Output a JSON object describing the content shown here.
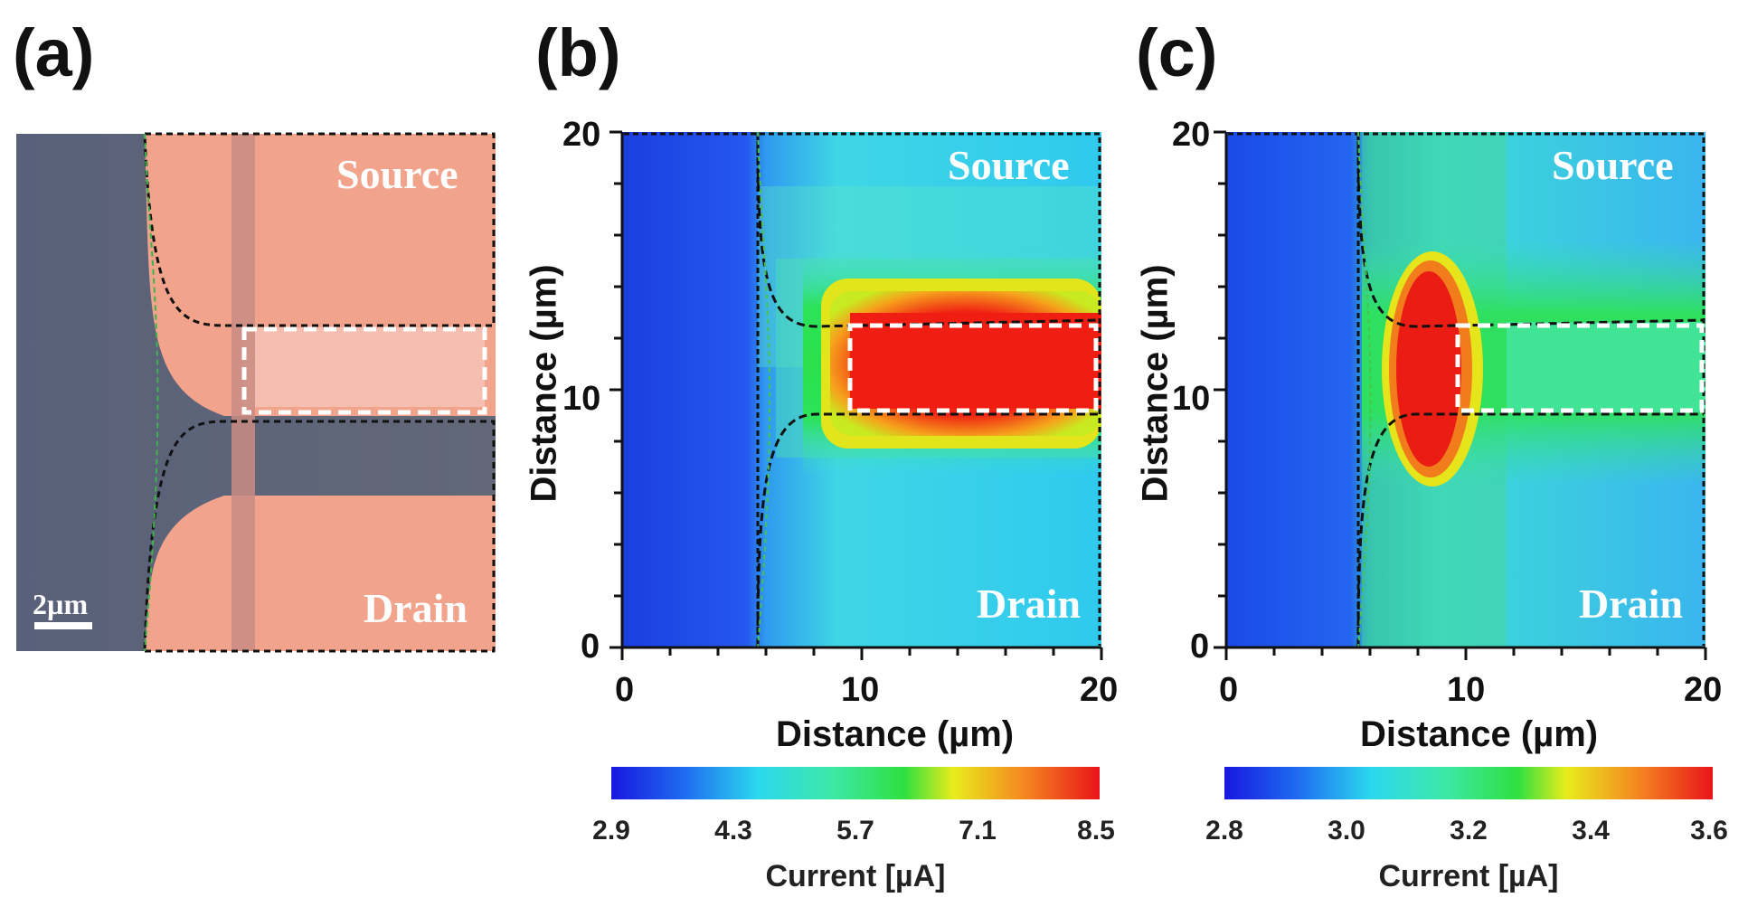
{
  "panels": {
    "a": {
      "label": "(a)",
      "source_label": "Source",
      "drain_label": "Drain",
      "scalebar_label": "2µm",
      "colors": {
        "substrate": "#5d6578",
        "electrode": "#f1a38c",
        "channel": "#f5b4a8",
        "stripe": "#c78d84"
      }
    },
    "b": {
      "label": "(b)",
      "source_label": "Source",
      "drain_label": "Drain",
      "xlabel": "Distance (µm)",
      "ylabel": "Distance (µm)",
      "colorbar_title": "Current [µA]",
      "colorbar_ticks": [
        "2.9",
        "4.3",
        "5.7",
        "7.1",
        "8.5"
      ]
    },
    "c": {
      "label": "(c)",
      "source_label": "Source",
      "drain_label": "Drain",
      "xlabel": "Distance (µm)",
      "ylabel": "Distance (µm)",
      "colorbar_title": "Current [µA]",
      "colorbar_ticks": [
        "2.8",
        "3.0",
        "3.2",
        "3.4",
        "3.6"
      ]
    }
  },
  "chart_data": [
    {
      "type": "heatmap",
      "panel": "b",
      "xlabel": "Distance (µm)",
      "ylabel": "Distance (µm)",
      "xlim": [
        0,
        20
      ],
      "ylim": [
        0,
        20
      ],
      "x_ticks": [
        "0",
        "10",
        "20"
      ],
      "y_ticks": [
        "0",
        "10",
        "20"
      ],
      "colorbar": {
        "title": "Current [µA]",
        "min": 2.9,
        "max": 8.5,
        "ticks": [
          2.9,
          4.3,
          5.7,
          7.1,
          8.5
        ]
      },
      "annotations": [
        "Source",
        "Drain"
      ]
    },
    {
      "type": "heatmap",
      "panel": "c",
      "xlabel": "Distance (µm)",
      "ylabel": "Distance (µm)",
      "xlim": [
        0,
        20
      ],
      "ylim": [
        0,
        20
      ],
      "x_ticks": [
        "0",
        "10",
        "20"
      ],
      "y_ticks": [
        "0",
        "10",
        "20"
      ],
      "colorbar": {
        "title": "Current [µA]",
        "min": 2.8,
        "max": 3.6,
        "ticks": [
          2.8,
          3.0,
          3.2,
          3.4,
          3.6
        ]
      },
      "annotations": [
        "Source",
        "Drain"
      ]
    }
  ]
}
